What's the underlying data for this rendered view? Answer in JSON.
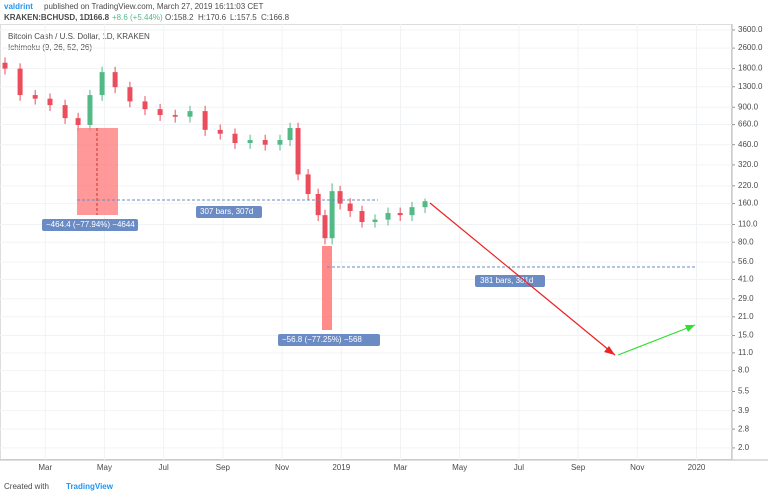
{
  "header": {
    "author": "valdrint",
    "published": "published on TradingView.com, March 27, 2019 16:11:03 CET",
    "symbol": "KRAKEN:BCHUSD, 1D",
    "last": "166.8",
    "change": "+8.6 (+5.44%)",
    "open": "O:158.2",
    "high": "H:170.6",
    "low": "L:157.5",
    "close": "C:166.8"
  },
  "footer": {
    "created": "Created with",
    "brand": "TradingView"
  },
  "chart_data": {
    "type": "candlestick",
    "title": "Bitcoin Cash / U.S. Dollar, 1D, KRAKEN",
    "subtitle": "Ichimoku (9, 26, 52, 26)",
    "x": [
      0.64,
      1.15,
      1.66,
      2.16,
      2.67,
      3.11,
      3.51,
      3.92,
      4.36,
      4.86,
      5.37,
      5.88,
      6.39,
      6.89,
      7.4,
      7.91,
      8.41,
      8.92,
      9.43,
      9.93,
      10.27,
      10.54,
      10.88,
      11.22,
      11.45,
      11.69,
      11.96,
      12.3,
      12.7,
      13.14,
      13.58,
      13.99,
      14.39,
      14.83
    ],
    "open": [
      2000,
      1800,
      1120,
      1050,
      935,
      741,
      655,
      1120,
      1690,
      1290,
      1000,
      870,
      783,
      760,
      840,
      600,
      560,
      474,
      500,
      460,
      500,
      620,
      270,
      190,
      130,
      86,
      200,
      160,
      140,
      115,
      120,
      135,
      130,
      150
    ],
    "high": [
      2200,
      1980,
      1230,
      1155,
      1030,
      815,
      1230,
      1860,
      1860,
      1420,
      1100,
      957,
      861,
      924,
      924,
      660,
      616,
      550,
      550,
      550,
      682,
      682,
      297,
      209,
      143,
      230,
      220,
      176,
      154,
      132,
      149,
      149,
      165,
      175
    ],
    "low": [
      1620,
      1010,
      945,
      840,
      667,
      590,
      590,
      1010,
      1160,
      900,
      783,
      705,
      684,
      684,
      540,
      504,
      427,
      427,
      414,
      414,
      450,
      243,
      171,
      117,
      77,
      77,
      144,
      126,
      104,
      104,
      108,
      117,
      117,
      135
    ],
    "close": [
      1800,
      1120,
      1050,
      935,
      741,
      655,
      1120,
      1690,
      1290,
      1000,
      870,
      783,
      760,
      840,
      600,
      560,
      474,
      500,
      460,
      500,
      620,
      270,
      190,
      130,
      86,
      200,
      160,
      140,
      115,
      120,
      135,
      130,
      150,
      166.8
    ],
    "up_color": "#53b987",
    "down_color": "#eb4d5c",
    "xlim": [
      0.64,
      25.2
    ],
    "xticks": [
      {
        "value": 2,
        "label": "Mar"
      },
      {
        "value": 4,
        "label": "May"
      },
      {
        "value": 6,
        "label": "Jul"
      },
      {
        "value": 8,
        "label": "Sep"
      },
      {
        "value": 10,
        "label": "Nov"
      },
      {
        "value": 12,
        "label": "2019"
      },
      {
        "value": 14,
        "label": "Mar"
      },
      {
        "value": 16,
        "label": "May"
      },
      {
        "value": 18,
        "label": "Jul"
      },
      {
        "value": 20,
        "label": "Sep"
      },
      {
        "value": 22,
        "label": "Nov"
      },
      {
        "value": 24,
        "label": "2020"
      }
    ],
    "ylim": [
      1.61,
      4305
    ],
    "log_scale": true,
    "grid": true,
    "yticks": [
      {
        "value": 3600,
        "label": "3600.0"
      },
      {
        "value": 2600,
        "label": "2600.0"
      },
      {
        "value": 1800,
        "label": "1800.0"
      },
      {
        "value": 1300,
        "label": "1300.0"
      },
      {
        "value": 900,
        "label": "900.0"
      },
      {
        "value": 660,
        "label": "660.0"
      },
      {
        "value": 460,
        "label": "460.0"
      },
      {
        "value": 320,
        "label": "320.0"
      },
      {
        "value": 220,
        "label": "220.0"
      },
      {
        "value": 160,
        "label": "160.0"
      },
      {
        "value": 110,
        "label": "110.0"
      },
      {
        "value": 80,
        "label": "80.0"
      },
      {
        "value": 56,
        "label": "56.0"
      },
      {
        "value": 41,
        "label": "41.0"
      },
      {
        "value": 29,
        "label": "29.0"
      },
      {
        "value": 21,
        "label": "21.0"
      },
      {
        "value": 15,
        "label": "15.0"
      },
      {
        "value": 11,
        "label": "11.0"
      },
      {
        "value": 8,
        "label": "8.0"
      },
      {
        "value": 5.5,
        "label": "5.5"
      },
      {
        "value": 3.9,
        "label": "3.9"
      },
      {
        "value": 2.8,
        "label": "2.8"
      },
      {
        "value": 2,
        "label": "2.0"
      }
    ],
    "annotations": [
      "−464.4 (−77.94%) −4644",
      "307 bars, 307d",
      "381 bars, 381d",
      "−56.8 (−77.25%) −568"
    ]
  }
}
